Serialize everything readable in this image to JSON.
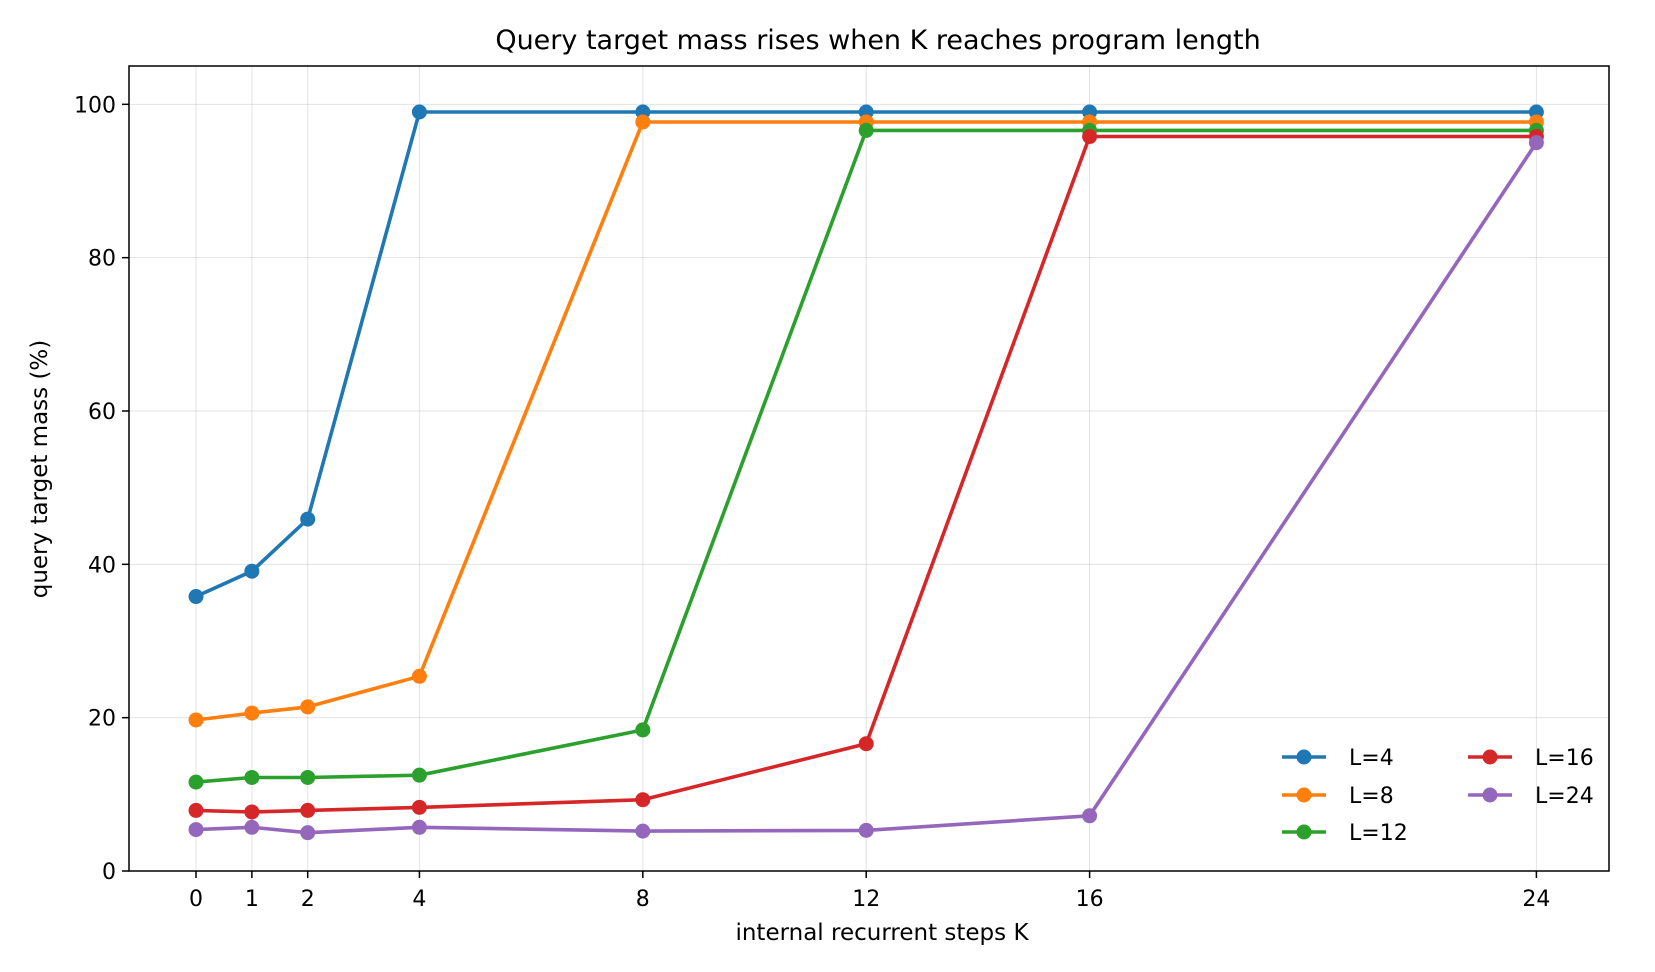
{
  "chart_data": {
    "type": "line",
    "title": "Query target mass rises when K reaches program length",
    "xlabel": "internal recurrent steps K",
    "ylabel": "query target mass (%)",
    "x": [
      0,
      1,
      2,
      4,
      8,
      12,
      16,
      24
    ],
    "xticks": [
      "0",
      "1",
      "2",
      "4",
      "8",
      "12",
      "16",
      "24"
    ],
    "yticks": [
      "0",
      "20",
      "40",
      "60",
      "80",
      "100"
    ],
    "xlim": [
      -1.2,
      25.3
    ],
    "ylim": [
      0,
      105
    ],
    "grid": true,
    "legend_position": "lower-right",
    "series": [
      {
        "name": "L=4",
        "color": "#1f77b4",
        "x": [
          0,
          1,
          2,
          4,
          8,
          12,
          16,
          24
        ],
        "values": [
          35.8,
          39.1,
          45.9,
          99.0,
          99.0,
          99.0,
          99.0,
          99.0
        ]
      },
      {
        "name": "L=8",
        "color": "#ff7f0e",
        "x": [
          0,
          1,
          2,
          4,
          8,
          12,
          16,
          24
        ],
        "values": [
          19.7,
          20.6,
          21.4,
          25.4,
          97.7,
          97.7,
          97.7,
          97.7
        ]
      },
      {
        "name": "L=12",
        "color": "#2ca02c",
        "x": [
          0,
          1,
          2,
          4,
          8,
          12,
          16,
          24
        ],
        "values": [
          11.6,
          12.2,
          12.2,
          12.5,
          18.4,
          96.6,
          96.6,
          96.6
        ]
      },
      {
        "name": "L=16",
        "color": "#d62728",
        "x": [
          0,
          1,
          2,
          4,
          8,
          12,
          16,
          24
        ],
        "values": [
          7.9,
          7.7,
          7.9,
          8.3,
          9.3,
          16.6,
          95.8,
          95.8
        ]
      },
      {
        "name": "L=24",
        "color": "#9467bd",
        "x": [
          0,
          1,
          2,
          4,
          8,
          12,
          16,
          24
        ],
        "values": [
          5.4,
          5.7,
          5.0,
          5.7,
          5.2,
          5.3,
          7.2,
          95.0
        ]
      }
    ]
  }
}
